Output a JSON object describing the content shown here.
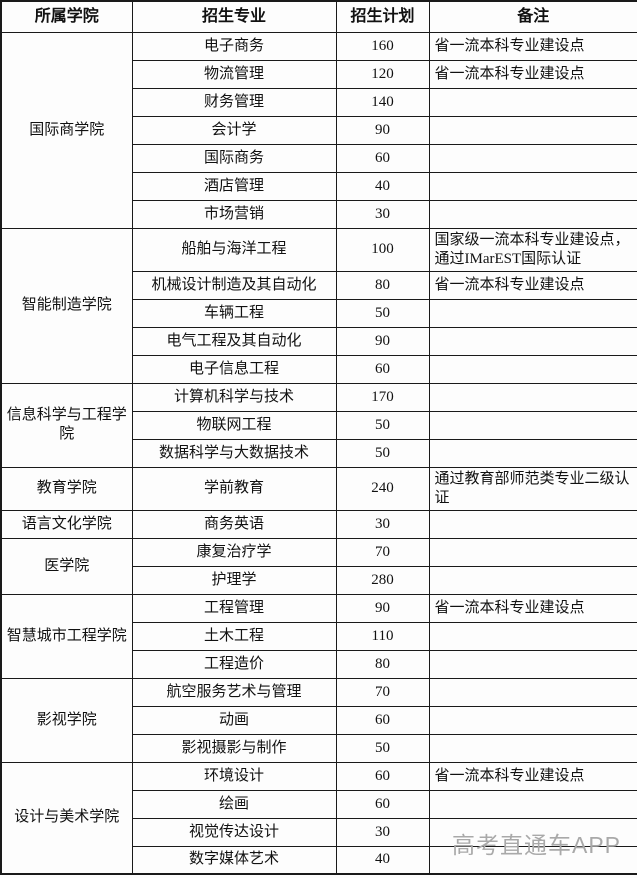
{
  "chart_data": {
    "type": "table",
    "columns": [
      "所属学院",
      "招生专业",
      "招生计划",
      "备注"
    ],
    "sections": [
      {
        "college": "国际商学院",
        "rows": [
          {
            "major": "电子商务",
            "plan": 160,
            "note": "省一流本科专业建设点"
          },
          {
            "major": "物流管理",
            "plan": 120,
            "note": "省一流本科专业建设点"
          },
          {
            "major": "财务管理",
            "plan": 140,
            "note": ""
          },
          {
            "major": "会计学",
            "plan": 90,
            "note": ""
          },
          {
            "major": "国际商务",
            "plan": 60,
            "note": ""
          },
          {
            "major": "酒店管理",
            "plan": 40,
            "note": ""
          },
          {
            "major": "市场营销",
            "plan": 30,
            "note": ""
          }
        ]
      },
      {
        "college": "智能制造学院",
        "rows": [
          {
            "major": "船舶与海洋工程",
            "plan": 100,
            "note": "国家级一流本科专业建设点，通过IMarEST国际认证"
          },
          {
            "major": "机械设计制造及其自动化",
            "plan": 80,
            "note": "省一流本科专业建设点"
          },
          {
            "major": "车辆工程",
            "plan": 50,
            "note": ""
          },
          {
            "major": "电气工程及其自动化",
            "plan": 90,
            "note": ""
          },
          {
            "major": "电子信息工程",
            "plan": 60,
            "note": ""
          }
        ]
      },
      {
        "college": "信息科学与工程学院",
        "rows": [
          {
            "major": "计算机科学与技术",
            "plan": 170,
            "note": ""
          },
          {
            "major": "物联网工程",
            "plan": 50,
            "note": ""
          },
          {
            "major": "数据科学与大数据技术",
            "plan": 50,
            "note": ""
          }
        ]
      },
      {
        "college": "教育学院",
        "rows": [
          {
            "major": "学前教育",
            "plan": 240,
            "note": "通过教育部师范类专业二级认证"
          }
        ]
      },
      {
        "college": "语言文化学院",
        "rows": [
          {
            "major": "商务英语",
            "plan": 30,
            "note": ""
          }
        ]
      },
      {
        "college": "医学院",
        "rows": [
          {
            "major": "康复治疗学",
            "plan": 70,
            "note": ""
          },
          {
            "major": "护理学",
            "plan": 280,
            "note": ""
          }
        ]
      },
      {
        "college": "智慧城市工程学院",
        "rows": [
          {
            "major": "工程管理",
            "plan": 90,
            "note": "省一流本科专业建设点"
          },
          {
            "major": "土木工程",
            "plan": 110,
            "note": ""
          },
          {
            "major": "工程造价",
            "plan": 80,
            "note": ""
          }
        ]
      },
      {
        "college": "影视学院",
        "rows": [
          {
            "major": "航空服务艺术与管理",
            "plan": 70,
            "note": ""
          },
          {
            "major": "动画",
            "plan": 60,
            "note": ""
          },
          {
            "major": "影视摄影与制作",
            "plan": 50,
            "note": ""
          }
        ]
      },
      {
        "college": "设计与美术学院",
        "rows": [
          {
            "major": "环境设计",
            "plan": 60,
            "note": "省一流本科专业建设点"
          },
          {
            "major": "绘画",
            "plan": 60,
            "note": ""
          },
          {
            "major": "视觉传达设计",
            "plan": 30,
            "note": ""
          },
          {
            "major": "数字媒体艺术",
            "plan": 40,
            "note": ""
          }
        ]
      }
    ]
  },
  "watermark": {
    "text": "高考直通车APP",
    "color": "#a9a9a9"
  },
  "colors": {
    "border": "#1a1a1a",
    "background": "#fdfdfd",
    "text": "#111111"
  }
}
